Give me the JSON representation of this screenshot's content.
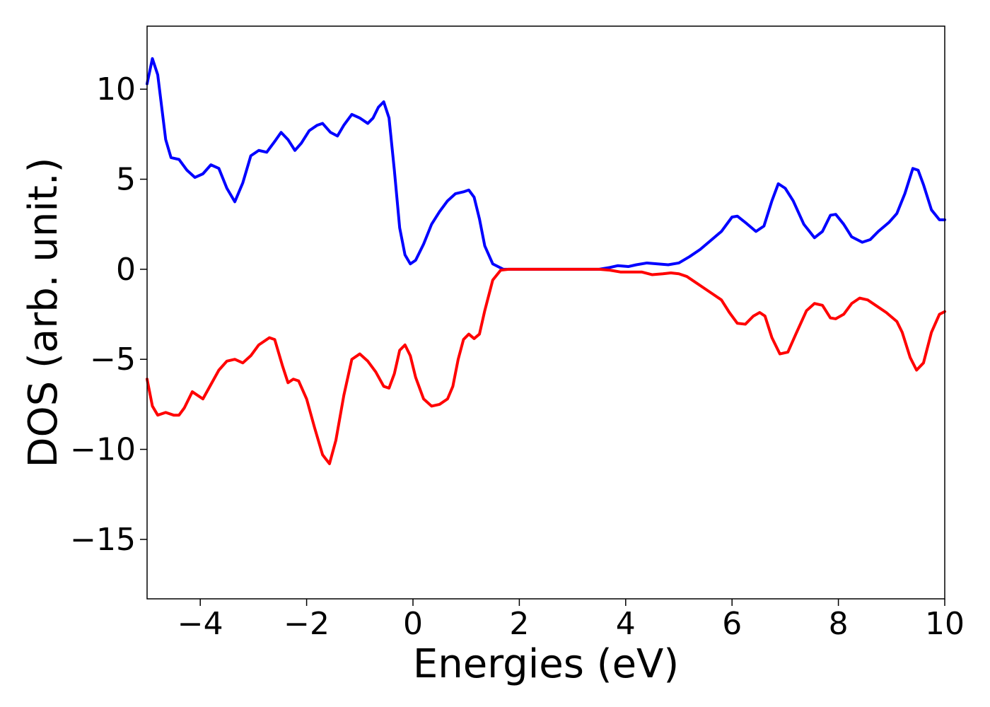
{
  "chart_data": {
    "type": "line",
    "title": "",
    "xlabel": "Energies (eV)",
    "ylabel": "DOS (arb. unit.)",
    "xlim": [
      -5,
      10
    ],
    "ylim": [
      -18.3,
      13.5
    ],
    "xticks": [
      -4,
      -2,
      0,
      2,
      4,
      6,
      8,
      10
    ],
    "yticks": [
      -15,
      -10,
      -5,
      0,
      5,
      10
    ],
    "xtick_labels": [
      "−4",
      "−2",
      "0",
      "2",
      "4",
      "6",
      "8",
      "10"
    ],
    "ytick_labels": [
      "−15",
      "−10",
      "−5",
      "0",
      "5",
      "10"
    ],
    "grid": false,
    "legend": "none",
    "series": [
      {
        "color": "#0000ff",
        "points": [
          [
            -5.0,
            10.3
          ],
          [
            -4.9,
            11.7
          ],
          [
            -4.8,
            10.8
          ],
          [
            -4.65,
            7.2
          ],
          [
            -4.55,
            6.2
          ],
          [
            -4.4,
            6.1
          ],
          [
            -4.25,
            5.5
          ],
          [
            -4.1,
            5.1
          ],
          [
            -3.95,
            5.3
          ],
          [
            -3.8,
            5.8
          ],
          [
            -3.65,
            5.6
          ],
          [
            -3.5,
            4.5
          ],
          [
            -3.35,
            3.75
          ],
          [
            -3.2,
            4.8
          ],
          [
            -3.05,
            6.3
          ],
          [
            -2.9,
            6.6
          ],
          [
            -2.75,
            6.5
          ],
          [
            -2.6,
            7.1
          ],
          [
            -2.48,
            7.6
          ],
          [
            -2.35,
            7.2
          ],
          [
            -2.22,
            6.6
          ],
          [
            -2.1,
            7.0
          ],
          [
            -1.95,
            7.7
          ],
          [
            -1.8,
            8.0
          ],
          [
            -1.7,
            8.1
          ],
          [
            -1.55,
            7.6
          ],
          [
            -1.42,
            7.4
          ],
          [
            -1.3,
            8.0
          ],
          [
            -1.15,
            8.6
          ],
          [
            -1.0,
            8.4
          ],
          [
            -0.85,
            8.1
          ],
          [
            -0.75,
            8.4
          ],
          [
            -0.65,
            9.0
          ],
          [
            -0.55,
            9.3
          ],
          [
            -0.45,
            8.4
          ],
          [
            -0.35,
            5.5
          ],
          [
            -0.25,
            2.3
          ],
          [
            -0.15,
            0.8
          ],
          [
            -0.05,
            0.3
          ],
          [
            0.05,
            0.5
          ],
          [
            0.2,
            1.4
          ],
          [
            0.35,
            2.5
          ],
          [
            0.5,
            3.2
          ],
          [
            0.65,
            3.8
          ],
          [
            0.8,
            4.2
          ],
          [
            0.95,
            4.3
          ],
          [
            1.05,
            4.4
          ],
          [
            1.15,
            4.0
          ],
          [
            1.25,
            2.8
          ],
          [
            1.35,
            1.3
          ],
          [
            1.5,
            0.3
          ],
          [
            1.7,
            0.0
          ],
          [
            2.0,
            0.0
          ],
          [
            2.5,
            0.0
          ],
          [
            3.0,
            0.0
          ],
          [
            3.5,
            0.0
          ],
          [
            3.7,
            0.1
          ],
          [
            3.85,
            0.2
          ],
          [
            4.05,
            0.15
          ],
          [
            4.2,
            0.25
          ],
          [
            4.4,
            0.35
          ],
          [
            4.6,
            0.3
          ],
          [
            4.8,
            0.25
          ],
          [
            5.0,
            0.35
          ],
          [
            5.2,
            0.7
          ],
          [
            5.4,
            1.1
          ],
          [
            5.6,
            1.6
          ],
          [
            5.8,
            2.1
          ],
          [
            6.0,
            2.9
          ],
          [
            6.1,
            2.95
          ],
          [
            6.25,
            2.6
          ],
          [
            6.45,
            2.1
          ],
          [
            6.6,
            2.4
          ],
          [
            6.75,
            3.8
          ],
          [
            6.87,
            4.75
          ],
          [
            7.0,
            4.5
          ],
          [
            7.15,
            3.8
          ],
          [
            7.35,
            2.5
          ],
          [
            7.55,
            1.75
          ],
          [
            7.7,
            2.1
          ],
          [
            7.85,
            3.0
          ],
          [
            7.95,
            3.05
          ],
          [
            8.1,
            2.5
          ],
          [
            8.25,
            1.8
          ],
          [
            8.45,
            1.5
          ],
          [
            8.6,
            1.65
          ],
          [
            8.75,
            2.1
          ],
          [
            8.95,
            2.6
          ],
          [
            9.1,
            3.1
          ],
          [
            9.25,
            4.2
          ],
          [
            9.4,
            5.6
          ],
          [
            9.5,
            5.5
          ],
          [
            9.6,
            4.7
          ],
          [
            9.75,
            3.3
          ],
          [
            9.9,
            2.75
          ],
          [
            10.0,
            2.75
          ]
        ]
      },
      {
        "color": "#ff0000",
        "points": [
          [
            -5.0,
            -6.1
          ],
          [
            -4.9,
            -7.6
          ],
          [
            -4.8,
            -8.1
          ],
          [
            -4.65,
            -7.95
          ],
          [
            -4.5,
            -8.1
          ],
          [
            -4.4,
            -8.1
          ],
          [
            -4.3,
            -7.7
          ],
          [
            -4.15,
            -6.8
          ],
          [
            -4.05,
            -7.0
          ],
          [
            -3.95,
            -7.2
          ],
          [
            -3.8,
            -6.4
          ],
          [
            -3.65,
            -5.6
          ],
          [
            -3.5,
            -5.1
          ],
          [
            -3.35,
            -5.0
          ],
          [
            -3.2,
            -5.2
          ],
          [
            -3.05,
            -4.8
          ],
          [
            -2.9,
            -4.2
          ],
          [
            -2.7,
            -3.8
          ],
          [
            -2.6,
            -3.9
          ],
          [
            -2.45,
            -5.4
          ],
          [
            -2.35,
            -6.3
          ],
          [
            -2.25,
            -6.1
          ],
          [
            -2.15,
            -6.2
          ],
          [
            -2.0,
            -7.2
          ],
          [
            -1.85,
            -8.8
          ],
          [
            -1.7,
            -10.3
          ],
          [
            -1.57,
            -10.8
          ],
          [
            -1.45,
            -9.5
          ],
          [
            -1.3,
            -7.0
          ],
          [
            -1.15,
            -5.0
          ],
          [
            -1.0,
            -4.7
          ],
          [
            -0.85,
            -5.1
          ],
          [
            -0.7,
            -5.7
          ],
          [
            -0.55,
            -6.5
          ],
          [
            -0.45,
            -6.6
          ],
          [
            -0.35,
            -5.8
          ],
          [
            -0.25,
            -4.5
          ],
          [
            -0.15,
            -4.2
          ],
          [
            -0.05,
            -4.8
          ],
          [
            0.05,
            -6.0
          ],
          [
            0.2,
            -7.2
          ],
          [
            0.35,
            -7.6
          ],
          [
            0.5,
            -7.5
          ],
          [
            0.65,
            -7.2
          ],
          [
            0.75,
            -6.5
          ],
          [
            0.85,
            -5.0
          ],
          [
            0.95,
            -3.9
          ],
          [
            1.05,
            -3.6
          ],
          [
            1.15,
            -3.85
          ],
          [
            1.25,
            -3.6
          ],
          [
            1.35,
            -2.3
          ],
          [
            1.5,
            -0.6
          ],
          [
            1.65,
            -0.05
          ],
          [
            1.8,
            0.0
          ],
          [
            2.5,
            0.0
          ],
          [
            3.0,
            0.0
          ],
          [
            3.5,
            0.0
          ],
          [
            3.7,
            -0.05
          ],
          [
            3.9,
            -0.15
          ],
          [
            4.1,
            -0.15
          ],
          [
            4.3,
            -0.15
          ],
          [
            4.5,
            -0.3
          ],
          [
            4.7,
            -0.25
          ],
          [
            4.85,
            -0.2
          ],
          [
            5.0,
            -0.25
          ],
          [
            5.15,
            -0.4
          ],
          [
            5.3,
            -0.7
          ],
          [
            5.5,
            -1.1
          ],
          [
            5.65,
            -1.4
          ],
          [
            5.8,
            -1.7
          ],
          [
            5.95,
            -2.4
          ],
          [
            6.1,
            -3.0
          ],
          [
            6.25,
            -3.05
          ],
          [
            6.4,
            -2.6
          ],
          [
            6.52,
            -2.4
          ],
          [
            6.62,
            -2.6
          ],
          [
            6.75,
            -3.8
          ],
          [
            6.9,
            -4.7
          ],
          [
            7.05,
            -4.6
          ],
          [
            7.2,
            -3.6
          ],
          [
            7.4,
            -2.3
          ],
          [
            7.55,
            -1.9
          ],
          [
            7.7,
            -2.0
          ],
          [
            7.85,
            -2.7
          ],
          [
            7.95,
            -2.75
          ],
          [
            8.1,
            -2.5
          ],
          [
            8.25,
            -1.9
          ],
          [
            8.4,
            -1.6
          ],
          [
            8.55,
            -1.7
          ],
          [
            8.7,
            -2.0
          ],
          [
            8.9,
            -2.4
          ],
          [
            9.1,
            -2.9
          ],
          [
            9.2,
            -3.5
          ],
          [
            9.35,
            -4.9
          ],
          [
            9.47,
            -5.6
          ],
          [
            9.6,
            -5.2
          ],
          [
            9.75,
            -3.5
          ],
          [
            9.9,
            -2.5
          ],
          [
            10.0,
            -2.35
          ]
        ]
      }
    ]
  }
}
